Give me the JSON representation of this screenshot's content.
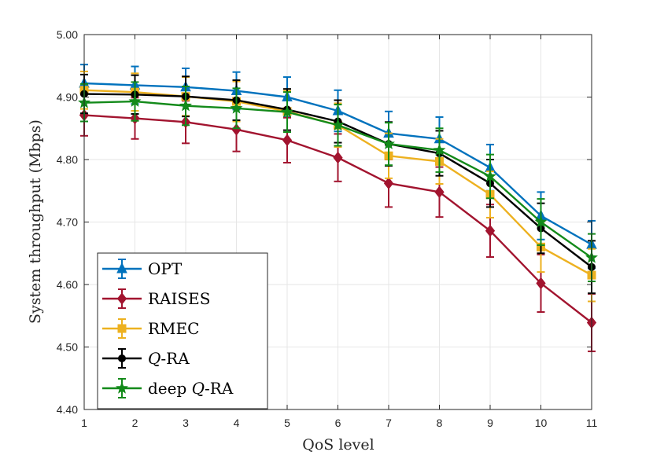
{
  "chart_data": {
    "type": "line",
    "title": "",
    "xlabel": "QoS level",
    "ylabel": "System throughput (Mbps)",
    "xlim": [
      1,
      11
    ],
    "ylim": [
      4.4,
      5.0
    ],
    "x": [
      1,
      2,
      3,
      4,
      5,
      6,
      7,
      8,
      9,
      10,
      11
    ],
    "x_ticks": [
      "1",
      "2",
      "3",
      "4",
      "5",
      "6",
      "7",
      "8",
      "9",
      "10",
      "11"
    ],
    "y_ticks": [
      "4.40",
      "4.50",
      "4.60",
      "4.70",
      "4.80",
      "4.90",
      "5.00"
    ],
    "y_tick_values": [
      4.4,
      4.5,
      4.6,
      4.7,
      4.8,
      4.9,
      5.0
    ],
    "grid": true,
    "legend_position": "bottom-left",
    "series": [
      {
        "name": "OPT",
        "label_main": "OPT",
        "label_italic": "",
        "label_suffix": "",
        "color": "#0072BD",
        "marker": "triangle",
        "values": [
          4.922,
          4.919,
          4.916,
          4.91,
          4.9,
          4.878,
          4.842,
          4.833,
          4.787,
          4.71,
          4.664
        ],
        "errors": [
          0.03,
          0.03,
          0.03,
          0.03,
          0.032,
          0.033,
          0.035,
          0.035,
          0.037,
          0.038,
          0.038
        ]
      },
      {
        "name": "RAISES",
        "label_main": "RAISES",
        "label_italic": "",
        "label_suffix": "",
        "color": "#A2142F",
        "marker": "diamond",
        "values": [
          4.871,
          4.866,
          4.86,
          4.848,
          4.831,
          4.803,
          4.762,
          4.748,
          4.686,
          4.602,
          4.539
        ],
        "errors": [
          0.033,
          0.033,
          0.034,
          0.035,
          0.036,
          0.038,
          0.038,
          0.04,
          0.042,
          0.046,
          0.046
        ]
      },
      {
        "name": "RMEC",
        "label_main": "RMEC",
        "label_italic": "",
        "label_suffix": "",
        "color": "#EDB120",
        "marker": "square",
        "values": [
          4.911,
          4.908,
          4.901,
          4.893,
          4.877,
          4.855,
          4.806,
          4.797,
          4.744,
          4.66,
          4.615
        ],
        "errors": [
          0.03,
          0.03,
          0.031,
          0.032,
          0.033,
          0.035,
          0.036,
          0.036,
          0.037,
          0.04,
          0.042
        ]
      },
      {
        "name": "Q-RA",
        "label_main": "",
        "label_italic": "Q",
        "label_suffix": "-RA",
        "color": "#000000",
        "marker": "circle",
        "values": [
          4.905,
          4.904,
          4.901,
          4.895,
          4.88,
          4.861,
          4.825,
          4.81,
          4.762,
          4.69,
          4.628
        ],
        "errors": [
          0.031,
          0.031,
          0.032,
          0.032,
          0.033,
          0.034,
          0.035,
          0.036,
          0.038,
          0.04,
          0.042
        ]
      },
      {
        "name": "deep Q-RA",
        "label_main": "deep ",
        "label_italic": "Q",
        "label_suffix": "-RA",
        "color": "#138A1A",
        "marker": "star",
        "values": [
          4.891,
          4.893,
          4.886,
          4.882,
          4.876,
          4.855,
          4.825,
          4.815,
          4.773,
          4.7,
          4.643
        ],
        "errors": [
          0.03,
          0.031,
          0.031,
          0.032,
          0.032,
          0.033,
          0.034,
          0.035,
          0.035,
          0.037,
          0.038
        ]
      }
    ]
  }
}
